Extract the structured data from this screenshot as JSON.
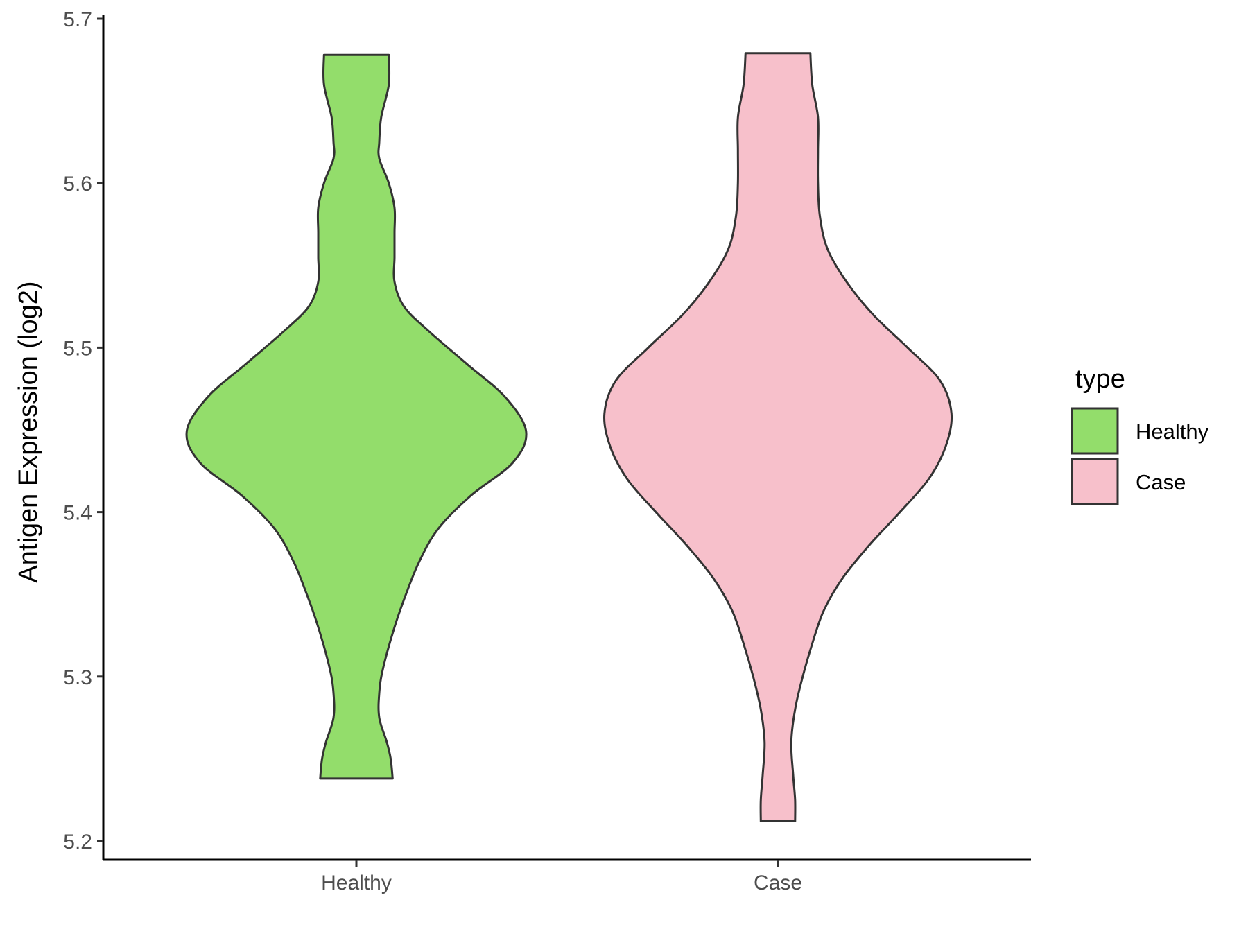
{
  "chart_data": {
    "type": "violin",
    "xlabel": "",
    "ylabel": "Antigen Expression (log2)",
    "ylim": [
      5.2,
      5.7
    ],
    "yticks": [
      5.2,
      5.3,
      5.4,
      5.5,
      5.6,
      5.7
    ],
    "ytick_labels": [
      "5.2",
      "5.3",
      "5.4",
      "5.5",
      "5.6",
      "5.7"
    ],
    "categories": [
      "Healthy",
      "Case"
    ],
    "grid": false,
    "legend": {
      "title": "type",
      "placement": "right",
      "entries": [
        {
          "label": "Healthy",
          "color": "#93dd6b"
        },
        {
          "label": "Case",
          "color": "#f7c0cb"
        }
      ]
    },
    "series": [
      {
        "name": "Healthy",
        "color": "#93dd6b",
        "min": 5.238,
        "max": 5.678,
        "profile": [
          [
            5.238,
            0.19
          ],
          [
            5.25,
            0.18
          ],
          [
            5.26,
            0.16
          ],
          [
            5.275,
            0.12
          ],
          [
            5.29,
            0.12
          ],
          [
            5.305,
            0.14
          ],
          [
            5.33,
            0.2
          ],
          [
            5.35,
            0.26
          ],
          [
            5.37,
            0.33
          ],
          [
            5.39,
            0.43
          ],
          [
            5.41,
            0.6
          ],
          [
            5.43,
            0.82
          ],
          [
            5.449,
            0.89
          ],
          [
            5.47,
            0.78
          ],
          [
            5.49,
            0.58
          ],
          [
            5.51,
            0.38
          ],
          [
            5.525,
            0.25
          ],
          [
            5.54,
            0.2
          ],
          [
            5.555,
            0.2
          ],
          [
            5.57,
            0.2
          ],
          [
            5.585,
            0.2
          ],
          [
            5.6,
            0.17
          ],
          [
            5.615,
            0.12
          ],
          [
            5.625,
            0.12
          ],
          [
            5.64,
            0.13
          ],
          [
            5.66,
            0.17
          ],
          [
            5.678,
            0.17
          ]
        ]
      },
      {
        "name": "Case",
        "color": "#f7c0cb",
        "min": 5.212,
        "max": 5.679,
        "profile": [
          [
            5.212,
            0.09
          ],
          [
            5.225,
            0.09
          ],
          [
            5.24,
            0.08
          ],
          [
            5.26,
            0.07
          ],
          [
            5.28,
            0.09
          ],
          [
            5.3,
            0.13
          ],
          [
            5.32,
            0.18
          ],
          [
            5.34,
            0.24
          ],
          [
            5.36,
            0.34
          ],
          [
            5.38,
            0.48
          ],
          [
            5.4,
            0.64
          ],
          [
            5.42,
            0.79
          ],
          [
            5.44,
            0.88
          ],
          [
            5.46,
            0.91
          ],
          [
            5.48,
            0.85
          ],
          [
            5.5,
            0.68
          ],
          [
            5.52,
            0.5
          ],
          [
            5.54,
            0.36
          ],
          [
            5.56,
            0.26
          ],
          [
            5.58,
            0.22
          ],
          [
            5.6,
            0.21
          ],
          [
            5.62,
            0.21
          ],
          [
            5.64,
            0.21
          ],
          [
            5.66,
            0.18
          ],
          [
            5.679,
            0.17
          ]
        ]
      }
    ]
  }
}
